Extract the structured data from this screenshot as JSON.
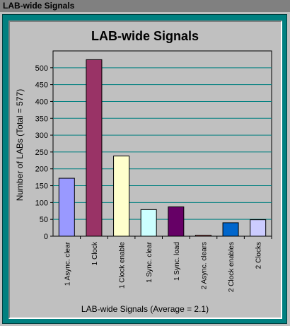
{
  "window": {
    "title": "LAB-wide Signals"
  },
  "chart_data": {
    "type": "bar",
    "title": "LAB-wide Signals",
    "xlabel": "LAB-wide Signals  (Average = 2.1)",
    "ylabel": "Number of LABs  (Total = 577)",
    "ylim": [
      0,
      550
    ],
    "yticks": [
      0,
      50,
      100,
      150,
      200,
      250,
      300,
      350,
      400,
      450,
      500
    ],
    "grid": true,
    "categories": [
      "1 Async. clear",
      "1 Clock",
      "1 Clock enable",
      "1 Sync. clear",
      "1 Sync. load",
      "2 Async. clears",
      "2 Clock enables",
      "2 Clocks"
    ],
    "values": [
      172,
      524,
      238,
      79,
      87,
      3,
      40,
      49
    ],
    "colors": [
      "#9999ff",
      "#993366",
      "#ffffcc",
      "#ccffff",
      "#660066",
      "#ff8080",
      "#0066cc",
      "#ccccff"
    ]
  }
}
